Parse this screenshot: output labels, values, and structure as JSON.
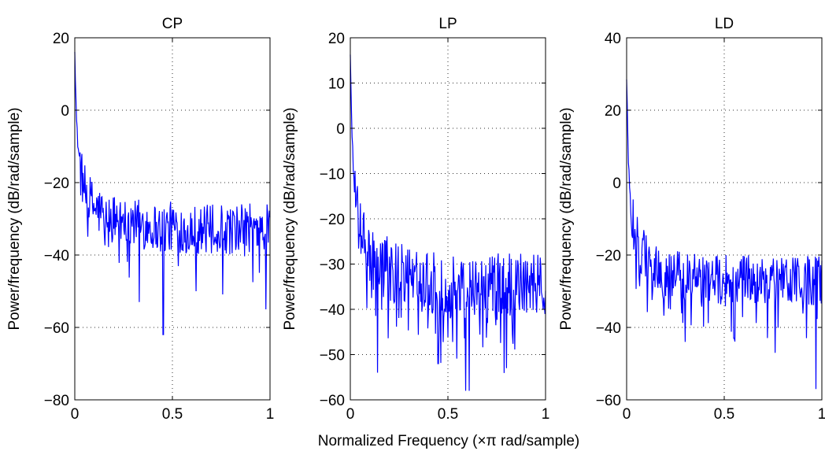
{
  "figure": {
    "xlabel": "Normalized Frequency  (×π rad/sample)"
  },
  "chart_data": [
    {
      "type": "line",
      "title": "CP",
      "ylabel": "Power/frequency (dB/rad/sample)",
      "xlim": [
        0,
        1
      ],
      "ylim": [
        -80,
        20
      ],
      "xticks": [
        0,
        0.5,
        1
      ],
      "yticks": [
        -80,
        -60,
        -40,
        -20,
        0,
        20
      ],
      "xtick_labels": [
        "0",
        "0.5",
        "1"
      ],
      "ytick_labels": [
        "−80",
        "−60",
        "−40",
        "−20",
        "0",
        "20"
      ],
      "grid": true,
      "series_color": "#0000ff",
      "series": [
        {
          "x": [
            0,
            0.005,
            0.01,
            0.02,
            0.03,
            0.05,
            0.08,
            0.1,
            0.15,
            0.2,
            0.3,
            0.4,
            0.45,
            0.5,
            0.6,
            0.7,
            0.8,
            0.9,
            1.0
          ],
          "y": [
            18,
            5,
            -5,
            -12,
            -17,
            -22,
            -25,
            -27,
            -29,
            -30,
            -31,
            -32,
            -33,
            -32,
            -33,
            -33,
            -33,
            -32,
            -33
          ]
        }
      ],
      "dips": [
        [
          0.453,
          -62
        ],
        [
          0.98,
          -55
        ],
        [
          0.33,
          -53
        ],
        [
          0.62,
          -50
        ]
      ]
    },
    {
      "type": "line",
      "title": "LP",
      "ylabel": "Power/frequency (dB/rad/sample)",
      "xlim": [
        0,
        1
      ],
      "ylim": [
        -60,
        20
      ],
      "xticks": [
        0,
        0.5,
        1
      ],
      "yticks": [
        -60,
        -50,
        -40,
        -30,
        -20,
        -10,
        0,
        10,
        20
      ],
      "xtick_labels": [
        "0",
        "0.5",
        "1"
      ],
      "ytick_labels": [
        "−60",
        "−50",
        "−40",
        "−30",
        "−20",
        "−10",
        "0",
        "10",
        "20"
      ],
      "grid": true,
      "series_color": "#0000ff",
      "series": [
        {
          "x": [
            0,
            0.005,
            0.01,
            0.02,
            0.03,
            0.05,
            0.08,
            0.1,
            0.15,
            0.2,
            0.3,
            0.4,
            0.5,
            0.6,
            0.7,
            0.8,
            0.9,
            1.0
          ],
          "y": [
            17,
            5,
            -3,
            -12,
            -18,
            -23,
            -26,
            -28,
            -30,
            -31,
            -33,
            -34,
            -35,
            -35,
            -35,
            -34,
            -35,
            -34
          ]
        }
      ],
      "dips": [
        [
          0.59,
          -58
        ],
        [
          0.61,
          -58
        ],
        [
          0.14,
          -54
        ],
        [
          0.45,
          -52
        ],
        [
          0.8,
          -53
        ]
      ]
    },
    {
      "type": "line",
      "title": "LD",
      "ylabel": "Power/frequency (dB/rad/sample)",
      "xlim": [
        0,
        1
      ],
      "ylim": [
        -60,
        40
      ],
      "xticks": [
        0,
        0.5,
        1
      ],
      "yticks": [
        -60,
        -40,
        -20,
        0,
        20,
        40
      ],
      "xtick_labels": [
        "0",
        "0.5",
        "1"
      ],
      "ytick_labels": [
        "−60",
        "−40",
        "−20",
        "0",
        "20",
        "40"
      ],
      "grid": true,
      "series_color": "#0000ff",
      "series": [
        {
          "x": [
            0,
            0.005,
            0.01,
            0.02,
            0.03,
            0.05,
            0.08,
            0.1,
            0.15,
            0.2,
            0.3,
            0.4,
            0.5,
            0.6,
            0.7,
            0.8,
            0.9,
            1.0
          ],
          "y": [
            28,
            15,
            5,
            -4,
            -10,
            -15,
            -19,
            -21,
            -23,
            -25,
            -26,
            -27,
            -27,
            -27,
            -27,
            -27,
            -27,
            -27
          ]
        }
      ],
      "dips": [
        [
          0.97,
          -57
        ],
        [
          0.3,
          -44
        ],
        [
          0.76,
          -47
        ],
        [
          0.55,
          -43
        ]
      ]
    }
  ]
}
